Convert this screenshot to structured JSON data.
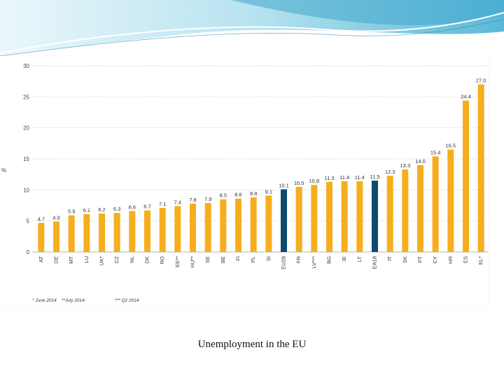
{
  "caption": "Unemployment in the EU",
  "colors": {
    "bar": "#F6AE1E",
    "highlight": "#0E4A6E",
    "banner_light": "#CBEAF3",
    "banner_mid": "#7FCBE3",
    "banner_dark": "#3FA8CC"
  },
  "chart_data": {
    "type": "bar",
    "title": "",
    "xlabel": "",
    "ylabel": "%",
    "ylim": [
      0,
      30
    ],
    "yticks": [
      "0",
      "5",
      "10",
      "15",
      "20",
      "25",
      "30"
    ],
    "grid": true,
    "categories": [
      "AT",
      "DE",
      "MT",
      "LU",
      "UK*",
      "CZ",
      "NL",
      "DK",
      "RO",
      "EE**",
      "HU**",
      "SE",
      "BE",
      "FI",
      "PL",
      "SI",
      "EU28",
      "FR",
      "LV***",
      "BG",
      "IE",
      "LT",
      "EA18",
      "IT",
      "SK",
      "PT",
      "CY",
      "HR",
      "ES",
      "EL*"
    ],
    "values": [
      4.7,
      4.9,
      5.9,
      6.1,
      6.2,
      6.3,
      6.6,
      6.7,
      7.1,
      7.4,
      7.8,
      7.9,
      8.5,
      8.6,
      8.8,
      9.1,
      10.1,
      10.5,
      10.8,
      11.3,
      11.4,
      11.4,
      11.5,
      12.3,
      13.3,
      14.0,
      15.4,
      16.5,
      24.4,
      27.0
    ],
    "value_labels": [
      "4.7",
      "4.9",
      "5.9",
      "6.1",
      "6.2",
      "6.3",
      "6.6",
      "6.7",
      "7.1",
      "7.4",
      "7.8",
      "7.9",
      "8.5",
      "8.6",
      "8.8",
      "9.1",
      "10.1",
      "10.5",
      "10.8",
      "11.3",
      "11.4",
      "11.4",
      "11.5",
      "12.3",
      "13.3",
      "14.0",
      "15.4",
      "16.5",
      "24.4",
      "27.0"
    ],
    "highlight_categories": [
      "EU28",
      "EA18"
    ],
    "footnotes": [
      "* June 2014",
      "**July 2014",
      "*** Q2 2014"
    ]
  }
}
